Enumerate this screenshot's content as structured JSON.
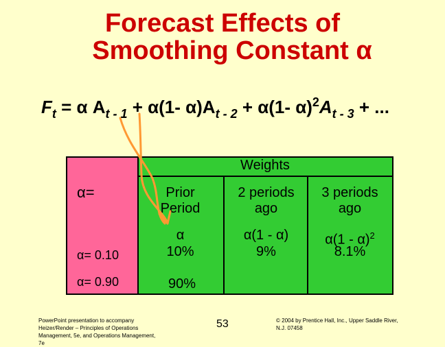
{
  "title": {
    "line1": "Forecast Effects of",
    "line2": "Smoothing Constant α"
  },
  "formula": {
    "F": "F",
    "t": "t",
    "eq": " = α A",
    "s1": "t - 1",
    "p2": " + α(1- α)A",
    "s2": "t - 2",
    "p3": " + α(1- α)",
    "exp": "2",
    "p3b": "A",
    "s3": "t - 3",
    "end": " + ..."
  },
  "table": {
    "weights_header": "Weights",
    "alpha_eq": "α=",
    "col_prior_l1": "Prior",
    "col_prior_l2": "Period",
    "col_2p_l1": "2 periods",
    "col_2p_l2": "ago",
    "col_3p_l1": "3 periods",
    "col_3p_l2": "ago",
    "expr_prior": "α",
    "expr_2p": "α(1 - α)",
    "expr_3p_base": "α(1 - α)",
    "expr_3p_exp": "2",
    "row1_label": "α= 0.10",
    "row1_prior": "10%",
    "row1_2p": "9%",
    "row1_3p": "8.1%",
    "row2_label": "α= 0.90",
    "row2_prior": "90%"
  },
  "footer": {
    "left_l1": "PowerPoint presentation to accompany",
    "left_l2": "Heizer/Render – Principles of Operations",
    "left_l3": "Management, 5e, and Operations Management,",
    "left_l4": "7e",
    "page": "53",
    "right_l1": "© 2004 by Prentice Hall, Inc., Upper Saddle River,",
    "right_l2": "N.J. 07458"
  },
  "colors": {
    "title": "#CC0000",
    "background": "#FFFFCC",
    "table_green": "#33CC33",
    "table_magenta": "#FF6699",
    "arrow": "#FF9933"
  }
}
